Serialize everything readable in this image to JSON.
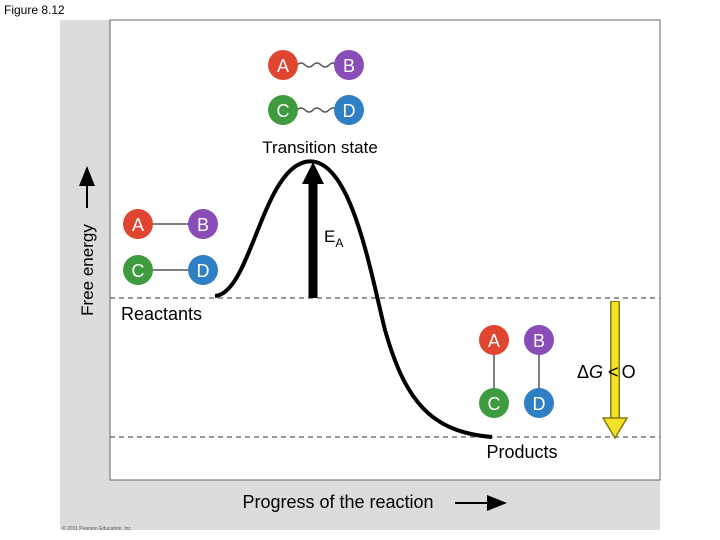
{
  "figure_label": "Figure 8.12",
  "credit": "© 2011 Pearson Education, Inc.",
  "y_axis_label": "Free energy",
  "x_axis_label": "Progress of the reaction",
  "transition_state_label": "Transition state",
  "reactants_label": "Reactants",
  "products_label": "Products",
  "activation_energy": {
    "main": "E",
    "sub": "A"
  },
  "delta_g": {
    "delta": "Δ",
    "g": "G",
    "relation": "<",
    "value": "O"
  },
  "molecules": {
    "a": "A",
    "b": "B",
    "c": "C",
    "d": "D"
  },
  "colors": {
    "panel": "#dcdcdc",
    "molecule_red": "#e0452f",
    "molecule_purple": "#8a4cb6",
    "molecule_green": "#3f9b3f",
    "molecule_blue": "#2f7fc4",
    "delta_g_arrow": "#f1e22a",
    "curve": "#000000"
  }
}
